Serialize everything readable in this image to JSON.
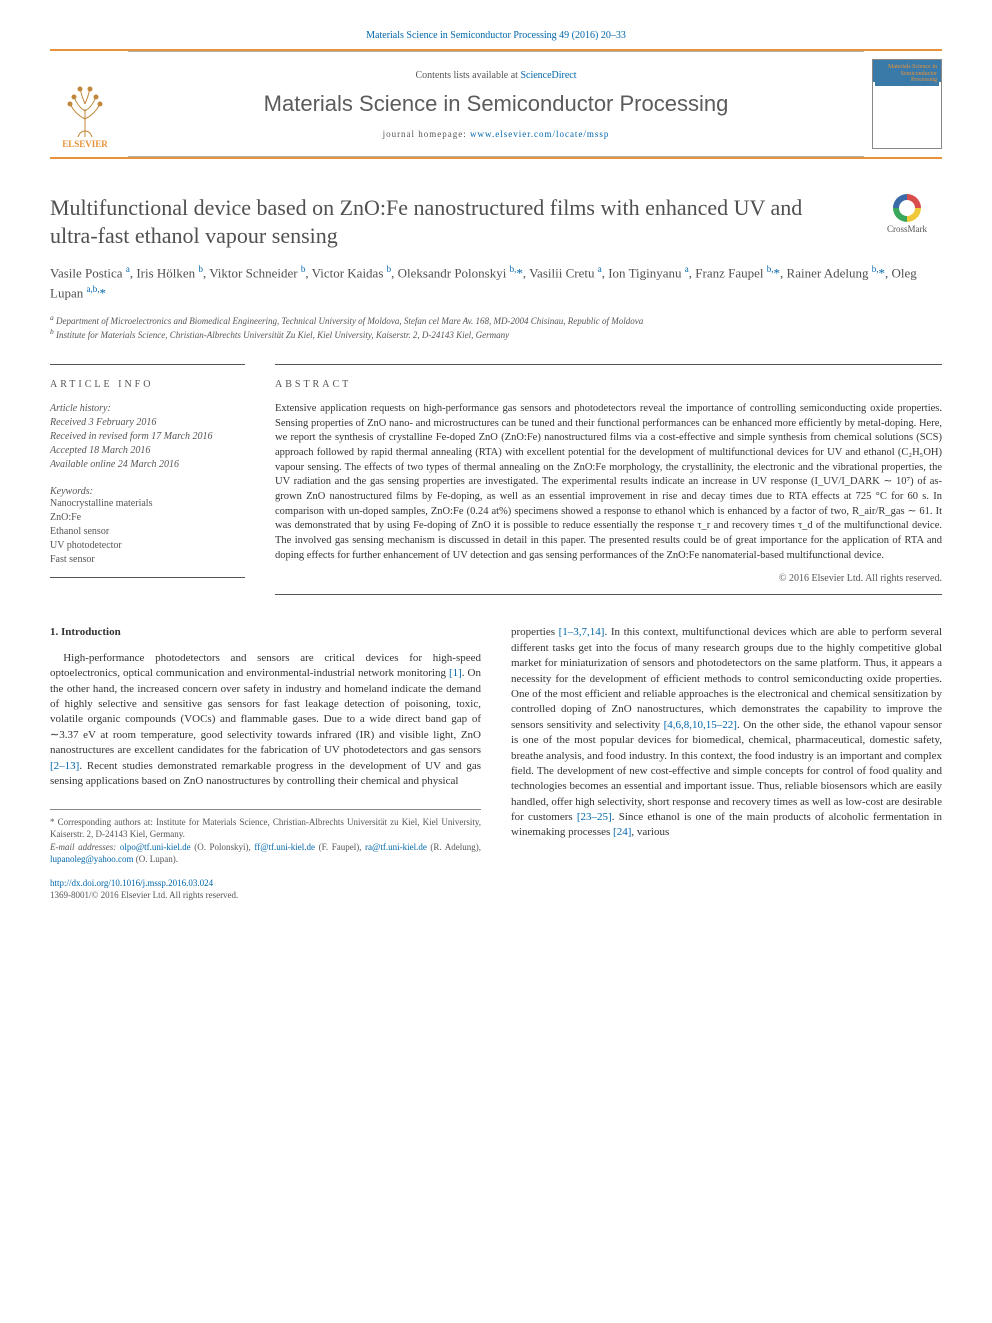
{
  "header": {
    "citation_link_prefix": "Materials Science in Semiconductor Processing 49 (2016) 20–33",
    "contents_prefix": "Contents lists available at ",
    "contents_link": "ScienceDirect",
    "journal_name": "Materials Science in Semiconductor Processing",
    "homepage_prefix": "journal homepage: ",
    "homepage_url": "www.elsevier.com/locate/mssp",
    "publisher_logo_text": "ELSEVIER",
    "cover_title": "Materials Science in Semiconductor Processing"
  },
  "article": {
    "title": "Multifunctional device based on ZnO:Fe nanostructured films with enhanced UV and ultra-fast ethanol vapour sensing",
    "crossmark_label": "CrossMark",
    "authors_html": "Vasile Postica <sup class='affil-sup'>a</sup>, Iris Hölken <sup class='affil-sup'>b</sup>, Viktor Schneider <sup class='affil-sup'>b</sup>, Victor Kaidas <sup class='affil-sup'>b</sup>, Oleksandr Polonskyi <sup class='affil-sup'>b,</sup><a href='#' class='star-sup'>*</a>, Vasilii Cretu <sup class='affil-sup'>a</sup>, Ion Tiginyanu <sup class='affil-sup'>a</sup>, Franz Faupel <sup class='affil-sup'>b,</sup><a href='#' class='star-sup'>*</a>, Rainer Adelung <sup class='affil-sup'>b,</sup><a href='#' class='star-sup'>*</a>, Oleg Lupan <sup class='affil-sup'>a,b,</sup><a href='#' class='star-sup'>*</a>",
    "affiliations": {
      "a": "Department of Microelectronics and Biomedical Engineering, Technical University of Moldova, Stefan cel Mare Av. 168, MD-2004 Chisinau, Republic of Moldova",
      "b": "Institute for Materials Science, Christian-Albrechts Universität Zu Kiel, Kiel University, Kaiserstr. 2, D-24143 Kiel, Germany"
    }
  },
  "info": {
    "label": "ARTICLE INFO",
    "history_label": "Article history:",
    "received": "Received 3 February 2016",
    "revised": "Received in revised form 17 March 2016",
    "accepted": "Accepted 18 March 2016",
    "online": "Available online 24 March 2016",
    "keywords_label": "Keywords:",
    "keywords": [
      "Nanocrystalline materials",
      "ZnO:Fe",
      "Ethanol sensor",
      "UV photodetector",
      "Fast sensor"
    ]
  },
  "abstract": {
    "label": "ABSTRACT",
    "text": "Extensive application requests on high-performance gas sensors and photodetectors reveal the importance of controlling semiconducting oxide properties. Sensing properties of ZnO nano- and microstructures can be tuned and their functional performances can be enhanced more efficiently by metal-doping. Here, we report the synthesis of crystalline Fe-doped ZnO (ZnO:Fe) nanostructured films via a cost-effective and simple synthesis from chemical solutions (SCS) approach followed by rapid thermal annealing (RTA) with excellent potential for the development of multifunctional devices for UV and ethanol (C₂H₅OH) vapour sensing. The effects of two types of thermal annealing on the ZnO:Fe morphology, the crystallinity, the electronic and the vibrational properties, the UV radiation and the gas sensing properties are investigated. The experimental results indicate an increase in UV response (I_UV/I_DARK ∼ 10⁷) of as-grown ZnO nanostructured films by Fe-doping, as well as an essential improvement in rise and decay times due to RTA effects at 725 °C for 60 s. In comparison with un-doped samples, ZnO:Fe (0.24 at%) specimens showed a response to ethanol which is enhanced by a factor of two, R_air/R_gas ∼ 61. It was demonstrated that by using Fe-doping of ZnO it is possible to reduce essentially the response τ_r and recovery times τ_d of the multifunctional device. The involved gas sensing mechanism is discussed in detail in this paper. The presented results could be of great importance for the application of RTA and doping effects for further enhancement of UV detection and gas sensing performances of the ZnO:Fe nanomaterial-based multifunctional device.",
    "copyright": "© 2016 Elsevier Ltd. All rights reserved."
  },
  "body": {
    "section1_heading": "1. Introduction",
    "col1_p1_html": "High-performance photodetectors and sensors are critical devices for high-speed optoelectronics, optical communication and environmental-industrial network monitoring <a href='#'>[1]</a>. On the other hand, the increased concern over safety in industry and homeland indicate the demand of highly selective and sensitive gas sensors for fast leakage detection of poisoning, toxic, volatile organic compounds (VOCs) and flammable gases. Due to a wide direct band gap of ∼3.37 eV at room temperature, good selectivity towards infrared (IR) and visible light, ZnO nanostructures are excellent candidates for the fabrication of UV photodetectors and gas sensors <a href='#'>[2–13]</a>. Recent studies demonstrated remarkable progress in the development of UV and gas sensing applications based on ZnO nanostructures by controlling their chemical and physical",
    "col2_p1_html": "properties <a href='#'>[1–3,7,14]</a>. In this context, multifunctional devices which are able to perform several different tasks get into the focus of many research groups due to the highly competitive global market for miniaturization of sensors and photodetectors on the same platform. Thus, it appears a necessity for the development of efficient methods to control semiconducting oxide properties. One of the most efficient and reliable approaches is the electronical and chemical sensitization by controlled doping of ZnO nanostructures, which demonstrates the capability to improve the sensors sensitivity and selectivity <a href='#'>[4,6,8,10,15–22]</a>. On the other side, the ethanol vapour sensor is one of the most popular devices for biomedical, chemical, pharmaceutical, domestic safety, breathe analysis, and food industry. In this context, the food industry is an important and complex field. The development of new cost-effective and simple concepts for control of food quality and technologies becomes an essential and important issue. Thus, reliable biosensors which are easily handled, offer high selectivity, short response and recovery times as well as low-cost are desirable for customers <a href='#'>[23–25]</a>. Since ethanol is one of the main products of alcoholic fermentation in winemaking processes <a href='#'>[24]</a>, various"
  },
  "footnotes": {
    "corr_label": "* Corresponding authors at: Institute for Materials Science, Christian-Albrechts Universität zu Kiel, Kiel University, Kaiserstr. 2, D-24143 Kiel, Germany.",
    "email_label": "E-mail addresses:",
    "emails_html": "<a href='#'>olpo@tf.uni-kiel.de</a> (O. Polonskyi), <a href='#'>ff@tf.uni-kiel.de</a> (F. Faupel), <a href='#'>ra@tf.uni-kiel.de</a> (R. Adelung), <a href='#'>lupanoleg@yahoo.com</a> (O. Lupan)."
  },
  "doi": {
    "url": "http://dx.doi.org/10.1016/j.mssp.2016.03.024",
    "issn_line": "1369-8001/© 2016 Elsevier Ltd. All rights reserved."
  },
  "colors": {
    "accent_orange": "#e8933a",
    "link_blue": "#0066aa",
    "text_gray": "#505050",
    "rule_gray": "#555555"
  }
}
